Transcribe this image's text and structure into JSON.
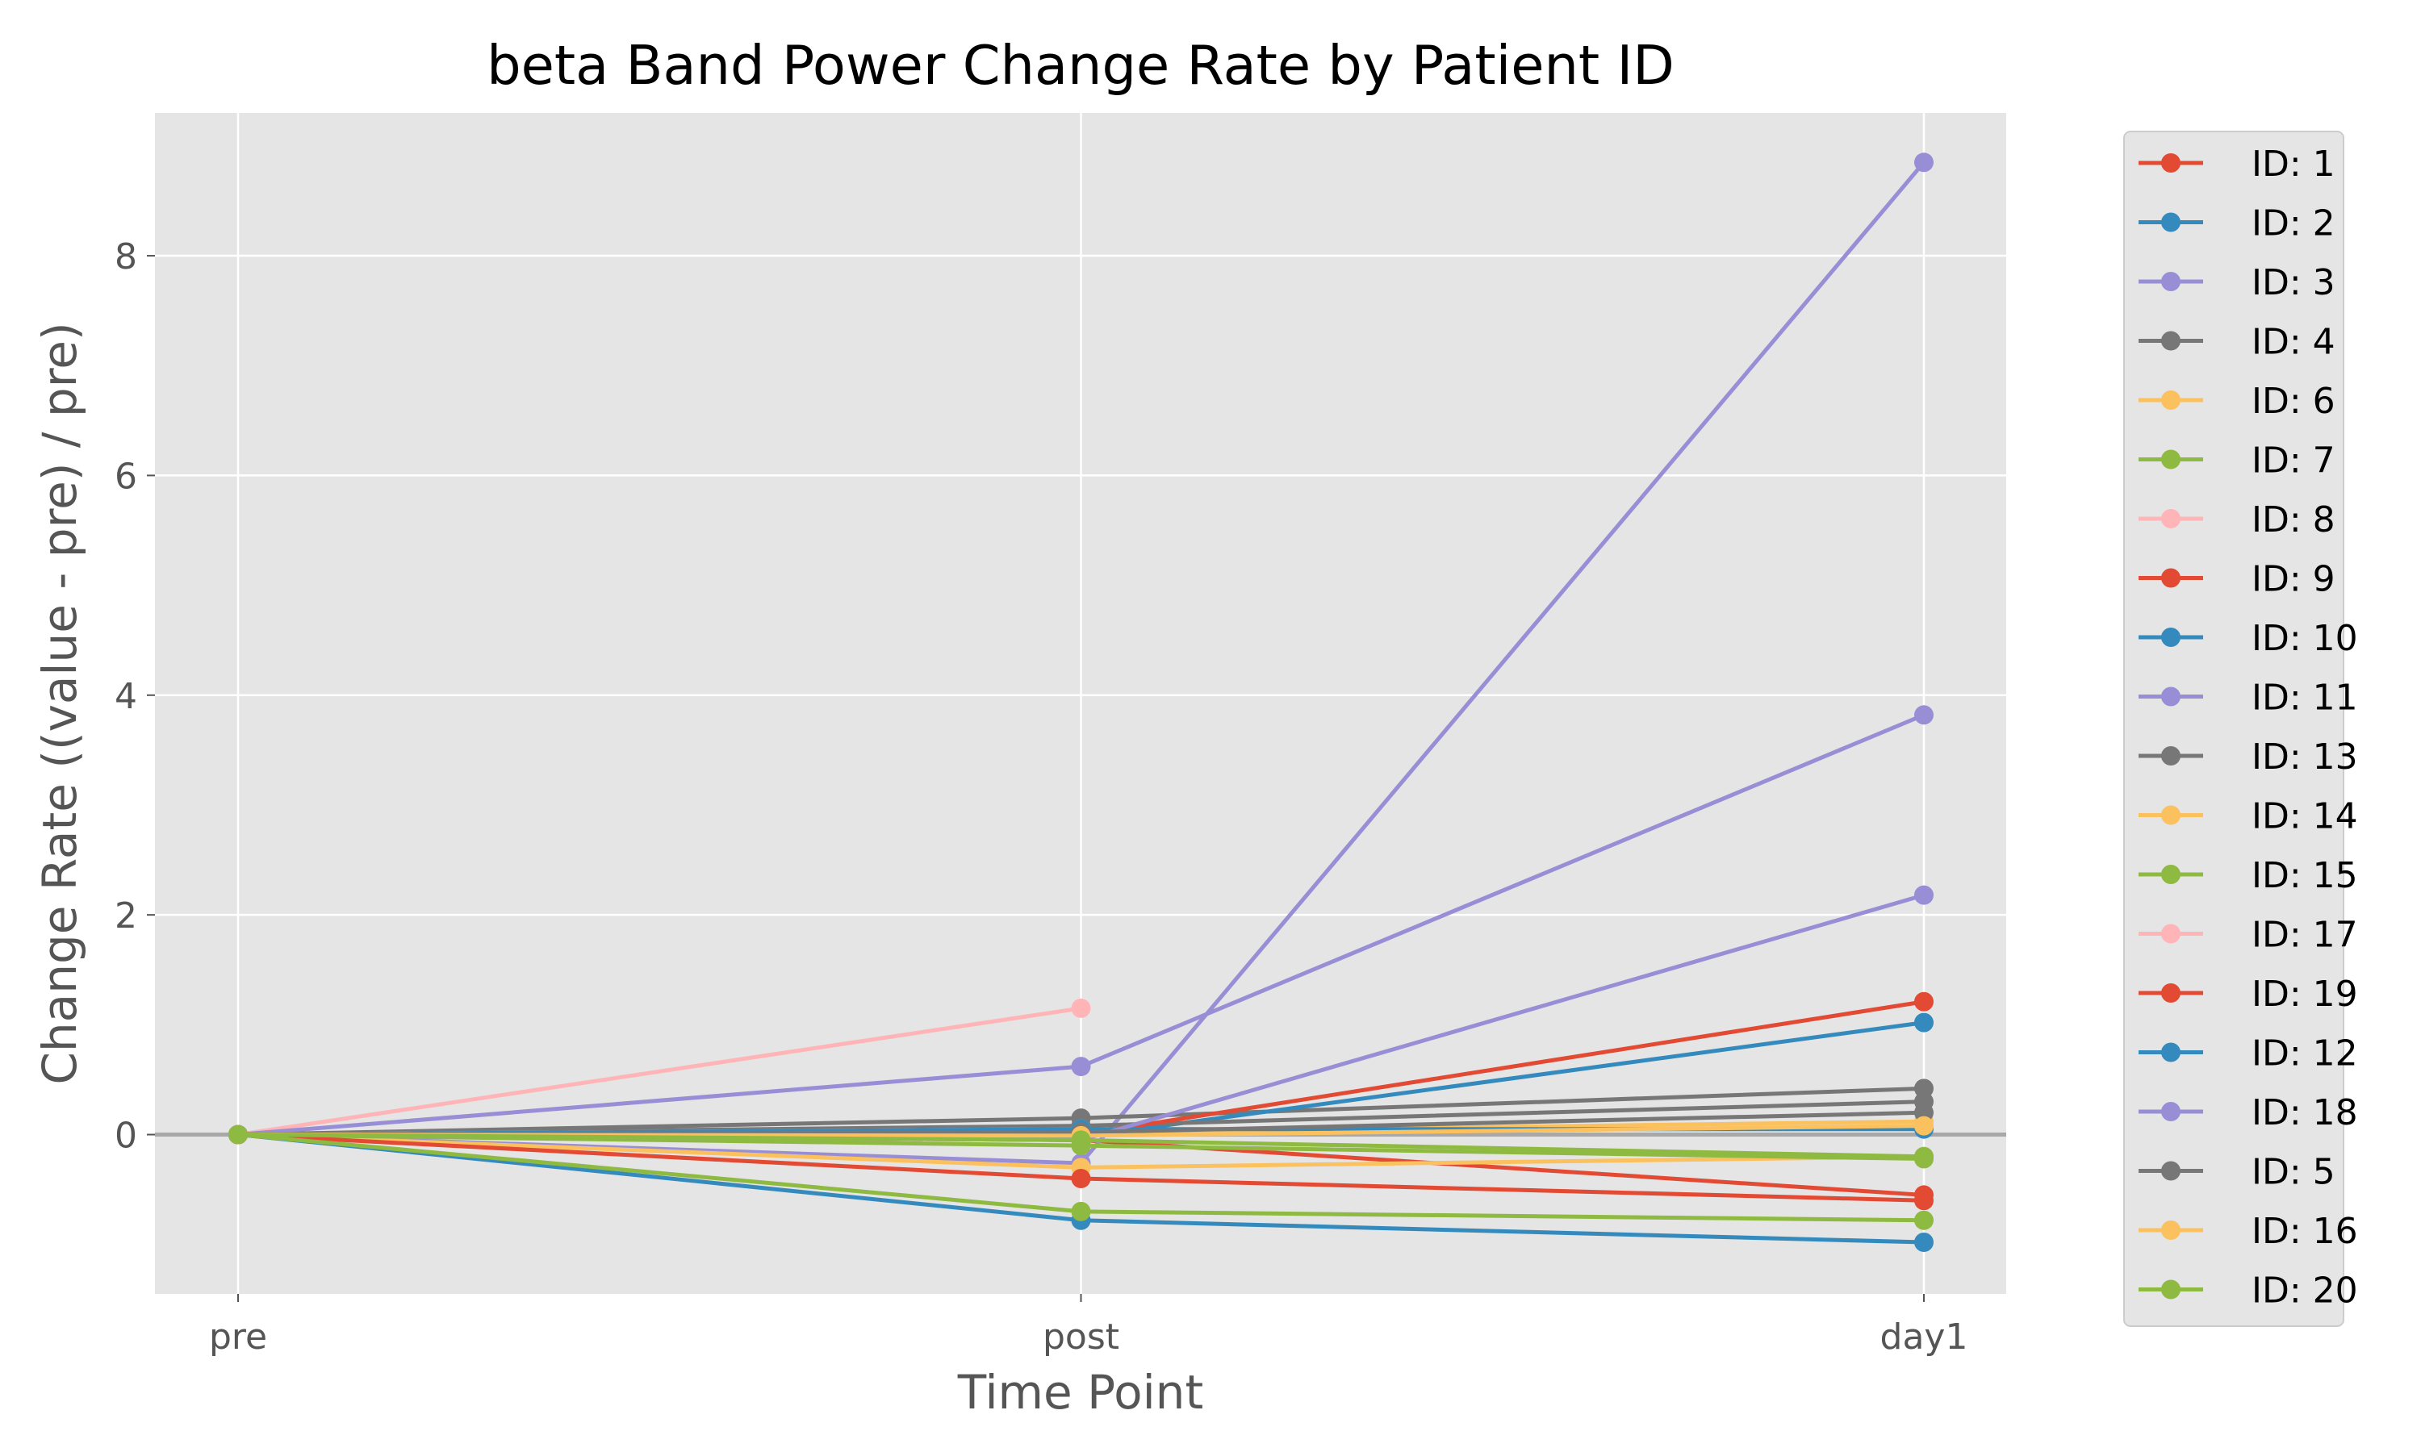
{
  "chart_data": {
    "type": "line",
    "title": "beta Band Power Change Rate by Patient ID",
    "xlabel": "Time Point",
    "ylabel": "Change Rate ((value - pre) / pre)",
    "categories": [
      "pre",
      "post",
      "day1"
    ],
    "ylim": [
      -1.45,
      9.3
    ],
    "yticks": [
      0,
      2,
      4,
      6,
      8
    ],
    "grid": true,
    "reference_line_y": 0,
    "legend_position": "outside-right",
    "series": [
      {
        "name": "ID: 1",
        "color": "#E24A33",
        "values": [
          0,
          -0.05,
          -0.55
        ]
      },
      {
        "name": "ID: 2",
        "color": "#348ABD",
        "values": [
          0,
          -0.78,
          -0.98
        ]
      },
      {
        "name": "ID: 3",
        "color": "#988ED5",
        "values": [
          0,
          -0.26,
          8.85
        ]
      },
      {
        "name": "ID: 4",
        "color": "#777777",
        "values": [
          0,
          0.15,
          0.42
        ]
      },
      {
        "name": "ID: 6",
        "color": "#FBC15E",
        "values": [
          0,
          -0.3,
          -0.2
        ]
      },
      {
        "name": "ID: 7",
        "color": "#8EBA42",
        "values": [
          0,
          -0.1,
          -0.22
        ]
      },
      {
        "name": "ID: 8",
        "color": "#FFB5B8",
        "values": [
          0,
          1.15,
          null
        ]
      },
      {
        "name": "ID: 9",
        "color": "#E24A33",
        "values": [
          0,
          -0.4,
          -0.6
        ]
      },
      {
        "name": "ID: 10",
        "color": "#348ABD",
        "values": [
          0,
          -0.02,
          1.02
        ]
      },
      {
        "name": "ID: 11",
        "color": "#988ED5",
        "values": [
          0,
          0.62,
          3.82
        ]
      },
      {
        "name": "ID: 13",
        "color": "#777777",
        "values": [
          0,
          0.08,
          0.3
        ]
      },
      {
        "name": "ID: 14",
        "color": "#FBC15E",
        "values": [
          0,
          0.02,
          0.12
        ]
      },
      {
        "name": "ID: 15",
        "color": "#8EBA42",
        "values": [
          0,
          -0.7,
          -0.78
        ]
      },
      {
        "name": "ID: 17",
        "color": "#FFB5B8",
        "values": [
          0,
          0.05,
          null
        ]
      },
      {
        "name": "ID: 19",
        "color": "#E24A33",
        "values": [
          0,
          0.0,
          1.21
        ]
      },
      {
        "name": "ID: 12",
        "color": "#348ABD",
        "values": [
          0,
          0.05,
          0.05
        ]
      },
      {
        "name": "ID: 18",
        "color": "#988ED5",
        "values": [
          0,
          -0.05,
          2.18
        ]
      },
      {
        "name": "ID: 5",
        "color": "#777777",
        "values": [
          0,
          0.02,
          0.2
        ]
      },
      {
        "name": "ID: 16",
        "color": "#FBC15E",
        "values": [
          0,
          -0.01,
          0.08
        ]
      },
      {
        "name": "ID: 20",
        "color": "#8EBA42",
        "values": [
          0,
          -0.05,
          -0.2
        ]
      }
    ]
  }
}
